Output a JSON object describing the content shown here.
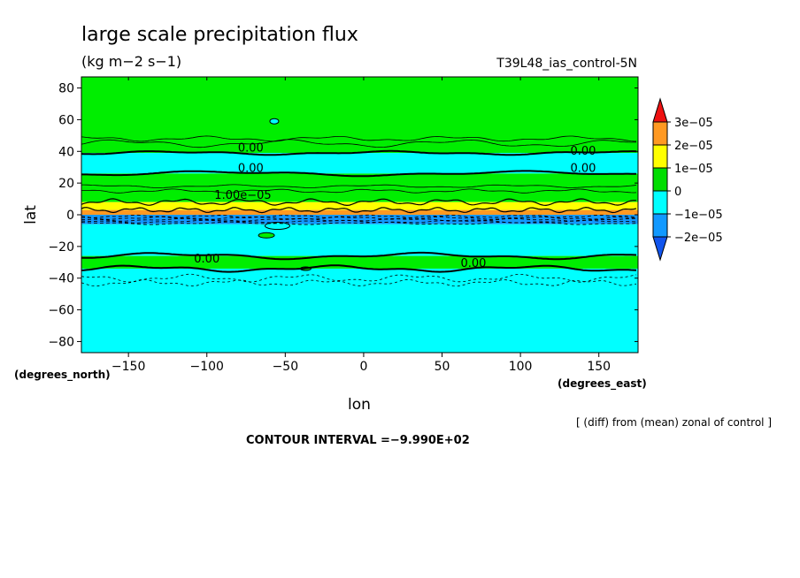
{
  "chart_data": {
    "type": "contour",
    "title": "large scale precipitation flux",
    "units": "(kg m−2 s−1)",
    "run_label": "T39L48_ias_control-5N",
    "xlabel": "lon",
    "ylabel": "lat",
    "x_unit_label": "(degrees_east)",
    "y_unit_label": "(degrees_north)",
    "xlim": [
      -180,
      175
    ],
    "ylim": [
      -87,
      87
    ],
    "x_ticks": [
      -150,
      -100,
      -50,
      0,
      50,
      100,
      150
    ],
    "y_ticks": [
      80,
      60,
      40,
      20,
      0,
      -20,
      -40,
      -60,
      -80
    ],
    "x_tick_labels": [
      "−150",
      "−100",
      "−50",
      "0",
      "50",
      "100",
      "150"
    ],
    "y_tick_labels": [
      "80",
      "60",
      "40",
      "20",
      "0",
      "−20",
      "−40",
      "−60",
      "−80"
    ],
    "colorbar": {
      "labels": [
        "3e−05",
        "2e−05",
        "1e−05",
        "0",
        "−1e−05",
        "−2e−05"
      ],
      "colors": [
        "#ee1111",
        "#ff9922",
        "#ffff00",
        "#00dd00",
        "#00ffff",
        "#1199ff",
        "#1155ee"
      ]
    },
    "bands": [
      {
        "lat_from": 87,
        "lat_to": 39,
        "color": "#00ee00"
      },
      {
        "lat_from": 39,
        "lat_to": 26,
        "color": "#00ffff"
      },
      {
        "lat_from": 26,
        "lat_to": 8,
        "color": "#00ee00"
      },
      {
        "lat_from": 8,
        "lat_to": 3,
        "color": "#ffff00"
      },
      {
        "lat_from": 3,
        "lat_to": 0,
        "color": "#ff9922"
      },
      {
        "lat_from": 0,
        "lat_to": -6,
        "color": "#1199ff"
      },
      {
        "lat_from": -6,
        "lat_to": -26,
        "color": "#00ffff"
      },
      {
        "lat_from": -26,
        "lat_to": -34,
        "color": "#00ee00"
      },
      {
        "lat_from": -34,
        "lat_to": -87,
        "color": "#00ffff"
      }
    ],
    "contour_labels": [
      {
        "text": "0.00",
        "lon": -72,
        "lat": 40
      },
      {
        "text": "0.00",
        "lon": -72,
        "lat": 27
      },
      {
        "text": "0.00",
        "lon": 140,
        "lat": 38
      },
      {
        "text": "0.00",
        "lon": 140,
        "lat": 27
      },
      {
        "text": "1.00e−05",
        "lon": -77,
        "lat": 10
      },
      {
        "text": "0.00",
        "lon": -100,
        "lat": -30
      },
      {
        "text": "0.00",
        "lon": 70,
        "lat": -33
      }
    ],
    "footer": "[ (diff) from (mean) zonal of control ]",
    "contour_interval": "CONTOUR INTERVAL =−9.990E+02"
  }
}
